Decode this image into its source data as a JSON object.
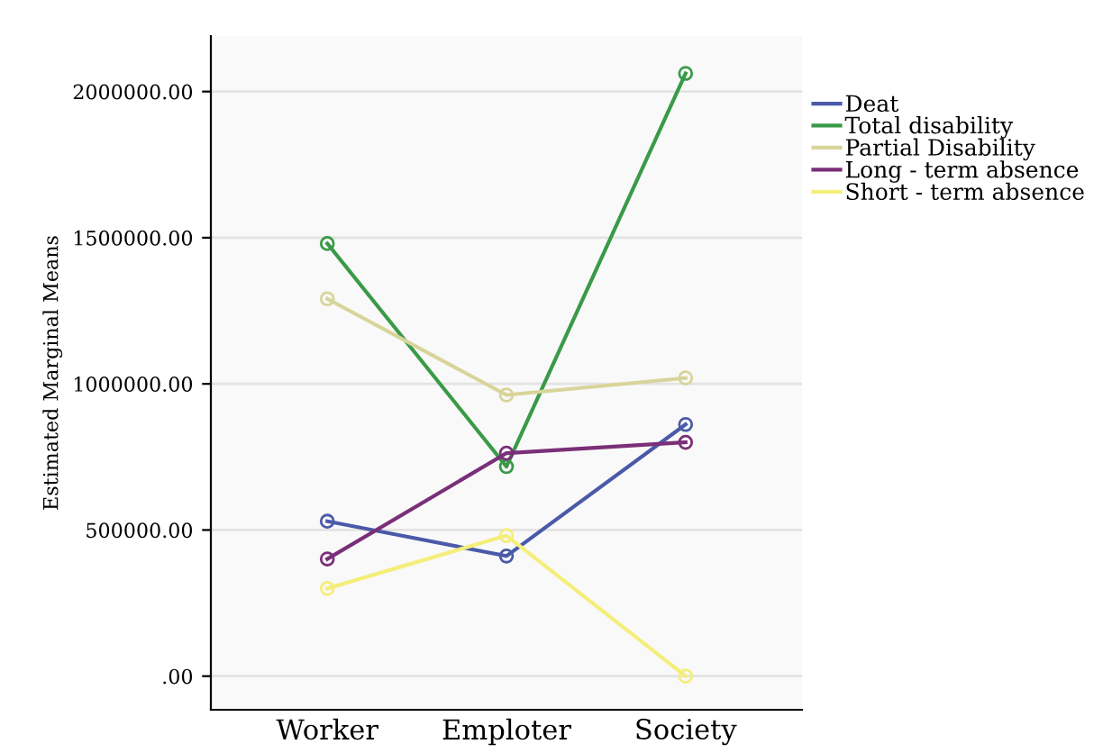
{
  "chart_data": {
    "type": "line",
    "ylabel": "Estimated Marginal Means",
    "categories": [
      "Worker",
      "Emploter",
      "Society"
    ],
    "series": [
      {
        "name": "Deat",
        "color": "#4a5aa8",
        "values": [
          530000,
          411000,
          861000
        ]
      },
      {
        "name": "Total disability",
        "color": "#3a9a48",
        "values": [
          1480000,
          717000,
          2062000
        ]
      },
      {
        "name": "Partial Disability",
        "color": "#d8d49a",
        "values": [
          1291000,
          962000,
          1020000
        ]
      },
      {
        "name": "Long - term absence",
        "color": "#7a2f78",
        "values": [
          401000,
          763000,
          800000
        ]
      },
      {
        "name": "Short - term absence",
        "color": "#f4ee7a",
        "values": [
          300000,
          481000,
          0
        ]
      }
    ],
    "ylim": [
      -115000,
      2190000
    ],
    "yticks": [
      {
        "value": 0,
        "label": ".00"
      },
      {
        "value": 500000,
        "label": "500000.00"
      },
      {
        "value": 1000000,
        "label": "1000000.00"
      },
      {
        "value": 1500000,
        "label": "1500000.00"
      },
      {
        "value": 2000000,
        "label": "2000000.00"
      }
    ],
    "grid": "y",
    "legend": "top right",
    "marker": "circle"
  }
}
